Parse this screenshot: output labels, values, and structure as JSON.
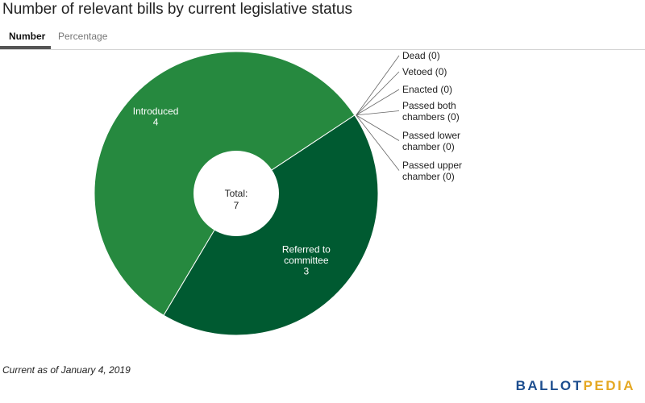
{
  "title": "Number of relevant bills by current legislative status",
  "tabs": {
    "number": "Number",
    "percentage": "Percentage"
  },
  "footnote": "Current as of January 4, 2019",
  "logo": {
    "part1": "BALLOT",
    "part2": "PEDIA",
    "colors": {
      "main": "#1d4e8f",
      "accent": "#e5a823"
    }
  },
  "colors": {
    "introduced": "#26893f",
    "referred": "#005a31"
  },
  "chart_data": {
    "type": "pie",
    "style": "donut",
    "center_label": "Total:",
    "total": 7,
    "slices": [
      {
        "label": "Referred to committee",
        "label_lines": [
          "Referred to",
          "committee"
        ],
        "value": 3,
        "color": "#005a31"
      },
      {
        "label": "Introduced",
        "label_lines": [
          "Introduced"
        ],
        "value": 4,
        "color": "#26893f"
      }
    ],
    "zero_slices": [
      {
        "label": "Dead",
        "label_lines": [
          "Dead (0)"
        ],
        "value": 0
      },
      {
        "label": "Vetoed",
        "label_lines": [
          "Vetoed (0)"
        ],
        "value": 0
      },
      {
        "label": "Enacted",
        "label_lines": [
          "Enacted (0)"
        ],
        "value": 0
      },
      {
        "label": "Passed both chambers",
        "label_lines": [
          "Passed both",
          "chambers (0)"
        ],
        "value": 0
      },
      {
        "label": "Passed lower chamber",
        "label_lines": [
          "Passed lower",
          "chamber (0)"
        ],
        "value": 0
      },
      {
        "label": "Passed upper chamber",
        "label_lines": [
          "Passed upper",
          "chamber (0)"
        ],
        "value": 0
      }
    ],
    "legend": "none"
  }
}
